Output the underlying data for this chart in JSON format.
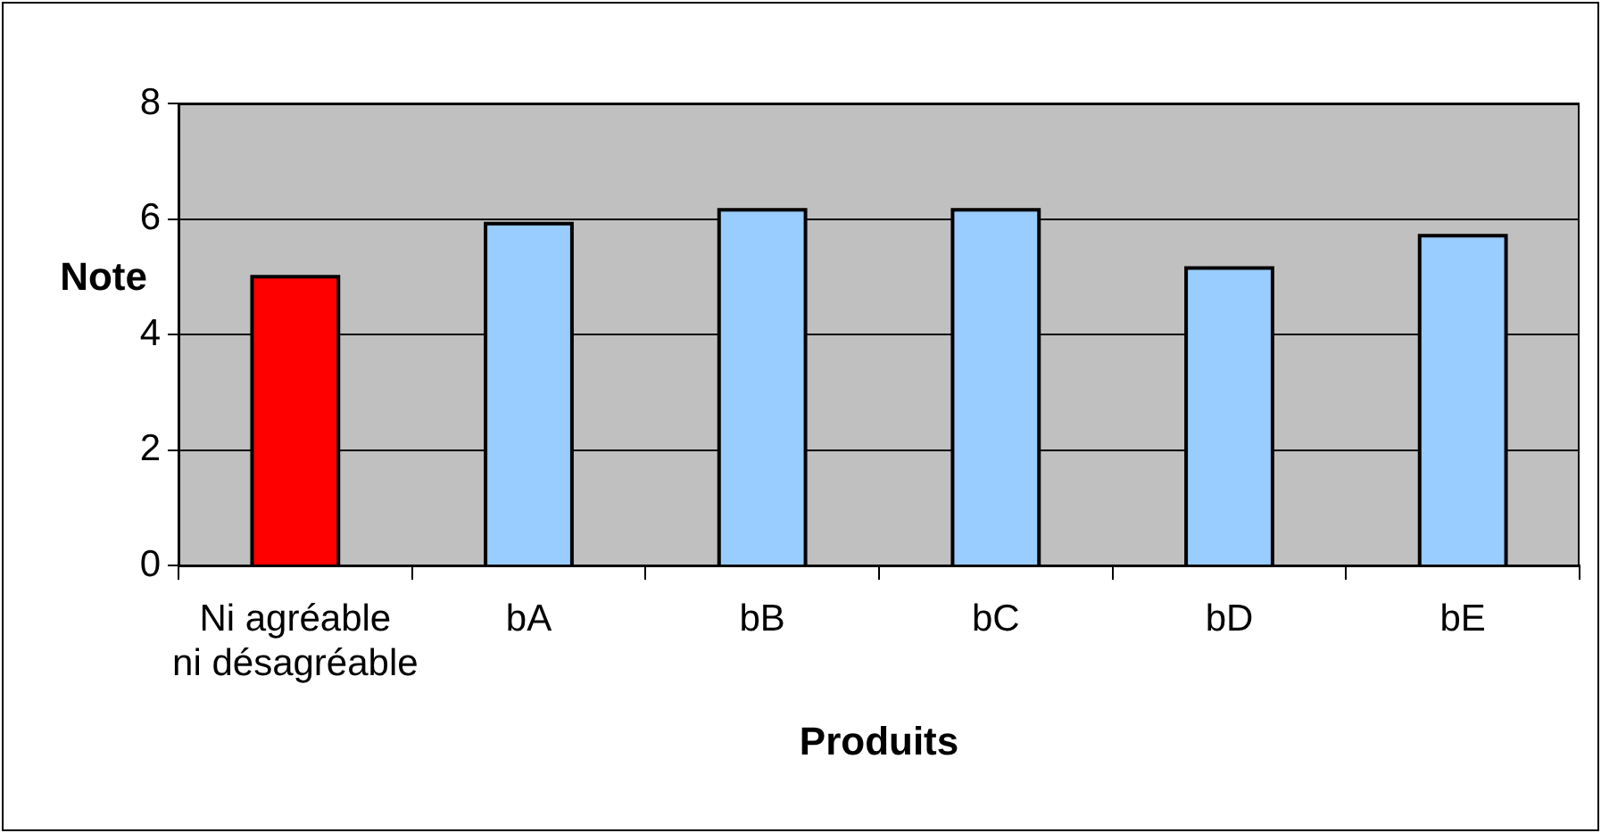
{
  "chart_data": {
    "type": "bar",
    "xlabel": "Produits",
    "ylabel": "Note",
    "categories": [
      "Ni agréable ni désagréable",
      "bA",
      "bB",
      "bC",
      "bD",
      "bE"
    ],
    "values": [
      5.0,
      5.92,
      6.16,
      6.16,
      5.15,
      5.71
    ],
    "colors": [
      "#ff0000",
      "#99ccff",
      "#99ccff",
      "#99ccff",
      "#99ccff",
      "#99ccff"
    ],
    "ylim": [
      0,
      8
    ],
    "yticks": [
      0,
      2,
      4,
      6,
      8
    ],
    "grid": "y"
  }
}
